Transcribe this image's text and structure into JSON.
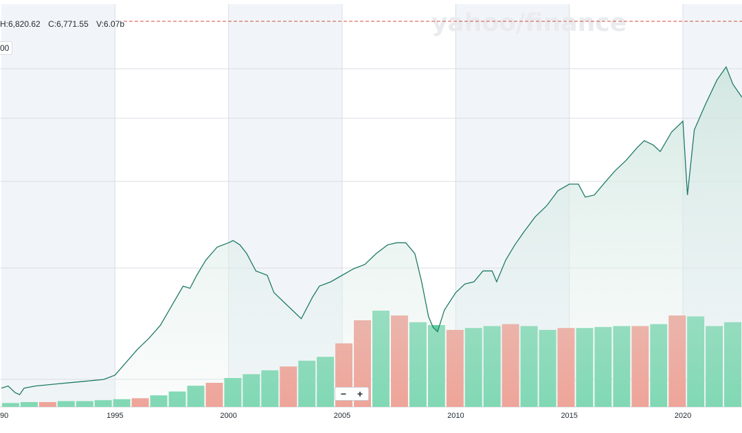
{
  "header": {
    "high_label": "H:6,820.62",
    "close_label": "C:6,771.55",
    "volume_label": "V:6.07b",
    "y_tick_partial": "00"
  },
  "watermark": "yahoo/finance",
  "zoom": {
    "minus": "−",
    "plus": "+"
  },
  "colors": {
    "line": "#1f7a66",
    "area_top": "#cfe6df",
    "band": "#f1f5f9",
    "vol_up": "#5ecfa0",
    "vol_down": "#f08a7c",
    "dashed": "#d44a3a",
    "grid": "#d9dde3"
  },
  "chart_data": {
    "type": "line",
    "title": "",
    "xlabel": "",
    "ylabel": "",
    "x_ticks": [
      "90",
      "1995",
      "2000",
      "2005",
      "2010",
      "2015",
      "2020"
    ],
    "x_range": [
      1990.0,
      2022.6
    ],
    "grid": true,
    "series": [
      {
        "x": [
          1990.0,
          1990.3,
          1990.6,
          1990.8,
          1991.0,
          1991.5,
          1992.0,
          1992.5,
          1993.0,
          1993.5,
          1994.0,
          1994.5,
          1995.0,
          1995.5,
          1996.0,
          1996.5,
          1997.0,
          1997.5,
          1998.0,
          1998.3,
          1998.6,
          1999.0,
          1999.5,
          2000.0,
          2000.2,
          2000.5,
          2000.8,
          2001.2,
          2001.7,
          2002.0,
          2002.4,
          2002.8,
          2003.2,
          2003.7,
          2004.0,
          2004.5,
          2005.0,
          2005.5,
          2006.0,
          2006.5,
          2007.0,
          2007.4,
          2007.8,
          2008.2,
          2008.5,
          2008.8,
          2009.0,
          2009.2,
          2009.5,
          2010.0,
          2010.4,
          2010.8,
          2011.2,
          2011.6,
          2011.8,
          2012.2,
          2012.6,
          2013.0,
          2013.5,
          2014.0,
          2014.5,
          2015.0,
          2015.4,
          2015.7,
          2016.1,
          2016.5,
          2017.0,
          2017.5,
          2018.0,
          2018.3,
          2018.7,
          2019.0,
          2019.5,
          2020.0,
          2020.2,
          2020.5,
          2021.0,
          2021.5,
          2021.9,
          2022.2,
          2022.6
        ],
        "y": [
          460,
          470,
          440,
          430,
          460,
          470,
          475,
          480,
          485,
          490,
          495,
          500,
          520,
          580,
          640,
          690,
          750,
          840,
          930,
          920,
          980,
          1050,
          1110,
          1130,
          1140,
          1120,
          1080,
          1000,
          980,
          900,
          860,
          820,
          780,
          880,
          930,
          950,
          980,
          1010,
          1030,
          1080,
          1120,
          1130,
          1130,
          1080,
          950,
          790,
          740,
          720,
          820,
          900,
          940,
          950,
          1000,
          1000,
          950,
          1050,
          1120,
          1180,
          1250,
          1300,
          1370,
          1400,
          1400,
          1340,
          1350,
          1400,
          1460,
          1510,
          1570,
          1600,
          1580,
          1550,
          1640,
          1690,
          1350,
          1650,
          1770,
          1880,
          1940,
          1860,
          1800
        ]
      },
      {
        "name": "Volume",
        "values": [
          4,
          5,
          5,
          6,
          6,
          7,
          8,
          9,
          12,
          16,
          22,
          25,
          30,
          34,
          38,
          42,
          48,
          52,
          66,
          90,
          100,
          95,
          88,
          85,
          80,
          82,
          84,
          86,
          84,
          80,
          82,
          82,
          83,
          84,
          84,
          86,
          95,
          94,
          84,
          88
        ]
      }
    ],
    "volume_up": [
      1,
      1,
      0,
      1,
      1,
      1,
      1,
      0,
      1,
      1,
      1,
      0,
      1,
      1,
      1,
      0,
      1,
      1,
      0,
      0,
      1,
      0,
      1,
      1,
      0,
      1,
      1,
      0,
      1,
      1,
      0,
      1,
      1,
      1,
      0,
      1,
      0,
      1,
      1,
      1
    ]
  }
}
